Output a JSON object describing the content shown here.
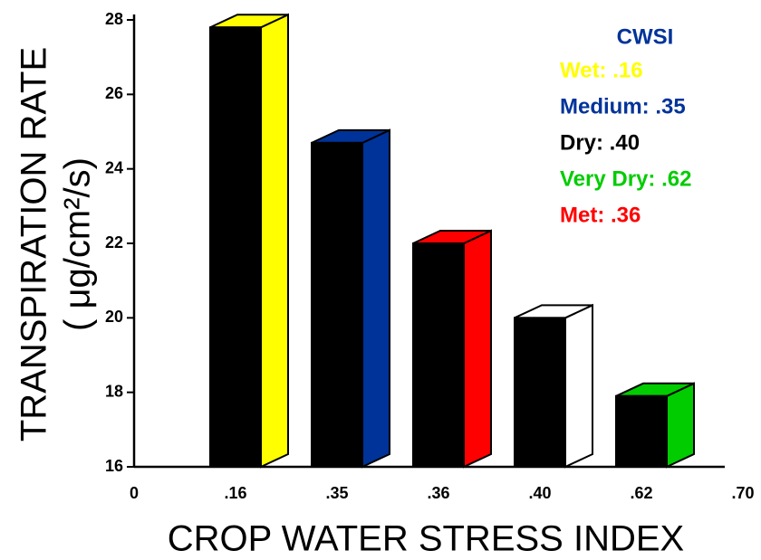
{
  "chart_data": {
    "type": "bar3d",
    "ylabel": [
      "TRANSPIRATION RATE",
      "( μg/cm²/s)"
    ],
    "xlabel": "CROP WATER STRESS INDEX",
    "categories": [
      "0",
      ".16",
      ".35",
      ".36",
      ".40",
      ".62",
      ".70"
    ],
    "values": [
      null,
      27.8,
      24.7,
      22.0,
      20.0,
      17.9,
      null
    ],
    "colors": [
      null,
      "#ffff00",
      "#003399",
      "#ff0000",
      "#ffffff",
      "#00cc00",
      null
    ],
    "ylim": [
      16,
      28
    ],
    "yticks": [
      16,
      18,
      20,
      22,
      24,
      26,
      28
    ],
    "legend": {
      "title": "CWSI",
      "title_color": "#003399",
      "entries": [
        {
          "label": "Wet: .16",
          "color": "#ffff00"
        },
        {
          "label": "Medium: .35",
          "color": "#003399"
        },
        {
          "label": "Dry: .40",
          "color": "#000000"
        },
        {
          "label": "Very Dry: .62",
          "color": "#00cc00"
        },
        {
          "label": "Met: .36",
          "color": "#ff0000"
        }
      ]
    }
  }
}
